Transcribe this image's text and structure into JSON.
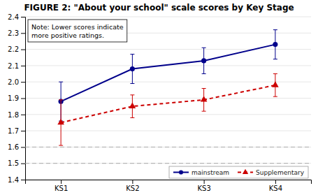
{
  "chart_data": {
    "type": "line",
    "title": "FIGURE 2: \"About your school\" scale scores by Key Stage",
    "categories": [
      "KS1",
      "KS2",
      "KS3",
      "KS4"
    ],
    "series": [
      {
        "name": "mainstream",
        "color": "#00008B",
        "marker": "circle",
        "line_style": "solid",
        "values": [
          1.88,
          2.08,
          2.13,
          2.23
        ],
        "error_low": [
          0.12,
          0.09,
          0.08,
          0.09
        ],
        "error_high": [
          0.12,
          0.09,
          0.08,
          0.09
        ]
      },
      {
        "name": "Supplementary",
        "color": "#CC0000",
        "marker": "triangle",
        "line_style": "dashed",
        "values": [
          1.75,
          1.85,
          1.89,
          1.98
        ],
        "error_low": [
          0.14,
          0.07,
          0.07,
          0.07
        ],
        "error_high": [
          0.14,
          0.07,
          0.07,
          0.07
        ]
      }
    ],
    "reference_lines": [
      1.6,
      1.5
    ],
    "ylim": [
      1.4,
      2.4
    ],
    "yticks": [
      1.4,
      1.5,
      1.6,
      1.7,
      1.8,
      1.9,
      {
        "value": 2.0,
        "label": "2.0"
      },
      2.1,
      2.2,
      2.3,
      2.4
    ],
    "annotation": "Note: Lower scores indicate\nmore positive ratings.",
    "grid": true,
    "legend": "lower-right"
  }
}
